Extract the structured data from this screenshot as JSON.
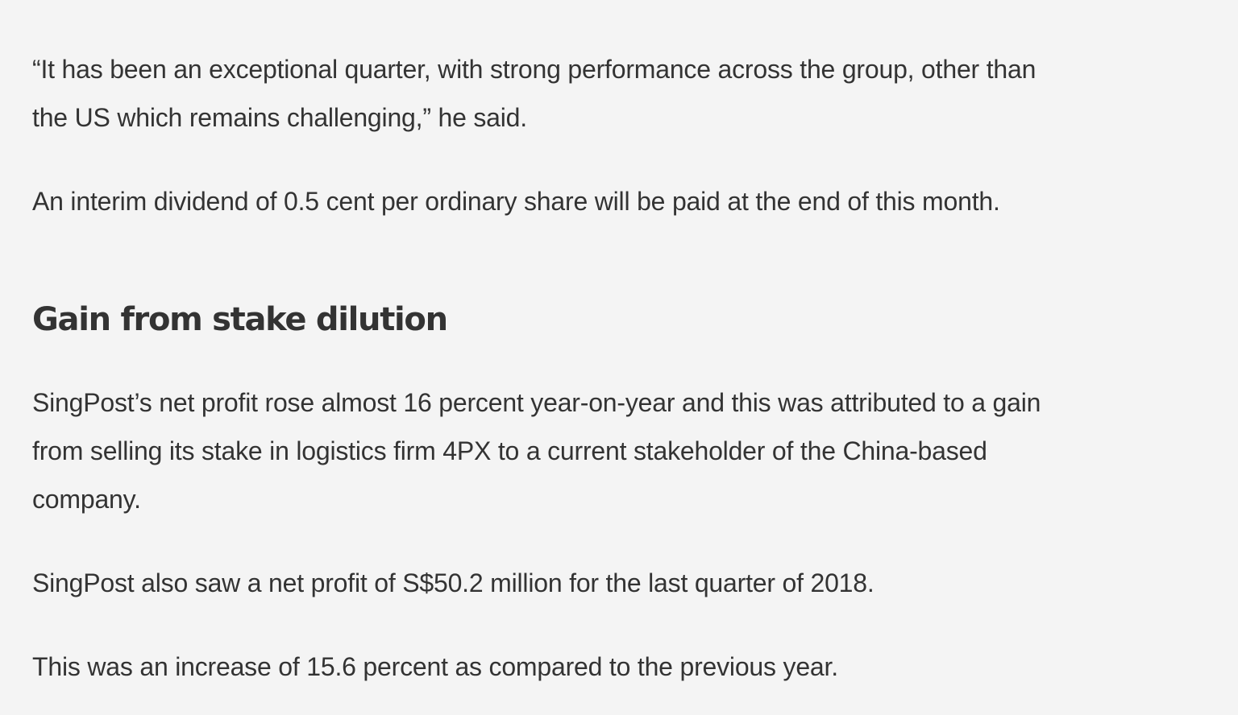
{
  "article": {
    "paragraph_1": {
      "lines": [
        "“It has been an exceptional quarter, with strong performance across the group, other than",
        "the US which remains challenging,” he said."
      ]
    },
    "paragraph_2": "An interim dividend of 0.5 cent per ordinary share will be paid at the end of this month.",
    "heading": "Gain from stake dilution",
    "paragraph_3": {
      "lines": [
        "SingPost’s net profit rose almost 16 percent year-on-year and this was attributed to a gain",
        "from selling its stake in logistics firm 4PX to a current stakeholder of the China-based",
        "company."
      ]
    },
    "paragraph_4": "SingPost also saw a net profit of S$50.2 million for the last quarter of 2018.",
    "paragraph_5": "This was an increase of 15.6 percent as compared to the previous year."
  }
}
